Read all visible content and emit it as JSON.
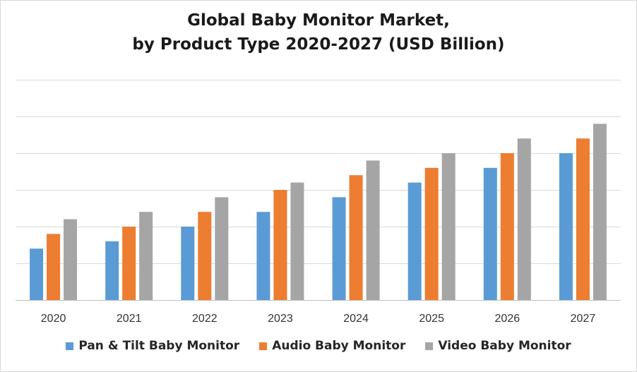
{
  "chart_data": {
    "type": "bar",
    "title": "Global Baby Monitor Market,",
    "subtitle": "by Product Type 2020-2027 (USD Billion)",
    "categories": [
      "2020",
      "2021",
      "2022",
      "2023",
      "2024",
      "2025",
      "2026",
      "2027"
    ],
    "series": [
      {
        "name": "Pan & Tilt Baby Monitor",
        "color": "#5b9bd5",
        "values": [
          1.4,
          1.6,
          2.0,
          2.4,
          2.8,
          3.2,
          3.6,
          4.0
        ]
      },
      {
        "name": "Audio Baby Monitor",
        "color": "#ed7d31",
        "values": [
          1.8,
          2.0,
          2.4,
          3.0,
          3.4,
          3.6,
          4.0,
          4.4
        ]
      },
      {
        "name": "Video Baby Monitor",
        "color": "#a5a5a5",
        "values": [
          2.2,
          2.4,
          2.8,
          3.2,
          3.8,
          4.0,
          4.4,
          4.8
        ]
      }
    ],
    "ylim": [
      0,
      6
    ],
    "yticks": [
      0,
      1,
      2,
      3,
      4,
      5,
      6
    ],
    "grid": true,
    "legend_position": "bottom",
    "xlabel": "",
    "ylabel": ""
  }
}
